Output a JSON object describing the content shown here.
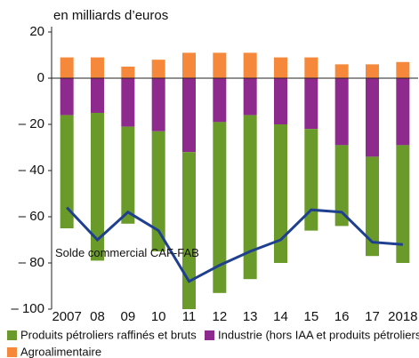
{
  "chart_data": {
    "type": "bar",
    "stacked": true,
    "y_axis_label": "en milliards d’euros",
    "categories": [
      "2007",
      "08",
      "09",
      "10",
      "11",
      "12",
      "13",
      "14",
      "15",
      "16",
      "17",
      "2018"
    ],
    "series": [
      {
        "name": "Industrie (hors IAA et produits pétroliers)",
        "color": "#8e2a8e",
        "values": [
          -16,
          -15,
          -21,
          -23,
          -32,
          -19,
          -16,
          -20,
          -22,
          -29,
          -34,
          -29
        ]
      },
      {
        "name": "Produits pétroliers raffinés et bruts",
        "color": "#6a9a2a",
        "values": [
          -49,
          -64,
          -42,
          -52,
          -68,
          -74,
          -71,
          -60,
          -44,
          -35,
          -43,
          -51
        ]
      },
      {
        "name": "Agroalimentaire",
        "color": "#f5883a",
        "values": [
          9,
          9,
          5,
          8,
          11,
          11,
          11,
          9,
          9,
          6,
          6,
          7
        ]
      },
      {
        "name": "Solde commercial CAF-FAB",
        "type": "line",
        "color": "#1f3f8f",
        "values": [
          -56,
          -70,
          -58,
          -66,
          -88,
          -81,
          -75,
          -70,
          -57,
          -58,
          -71,
          -72
        ]
      }
    ],
    "legend_order": [
      1,
      0,
      2
    ],
    "ylim": [
      -100,
      20
    ],
    "yticks": [
      20,
      0,
      {
        "value": -20,
        "label": "– 20"
      },
      {
        "value": -40,
        "label": "– 40"
      },
      {
        "value": -60,
        "label": "– 60"
      },
      {
        "value": -80,
        "label": "– 80"
      },
      {
        "value": -100,
        "label": "– 100"
      }
    ],
    "grid": false
  }
}
